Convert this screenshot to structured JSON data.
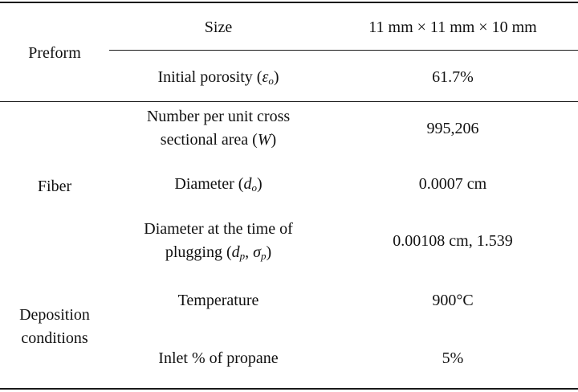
{
  "table": {
    "groups": {
      "preform": "Preform",
      "fiber": "Fiber",
      "deposition_line1": "Deposition",
      "deposition_line2": "conditions"
    },
    "rows": {
      "size": {
        "param": "Size",
        "value": "11 mm × 11 mm × 10 mm"
      },
      "porosity": {
        "param_text": "Initial porosity (",
        "param_sym": "ε",
        "param_sub": "o",
        "param_close": ")",
        "value": "61.7%"
      },
      "number": {
        "param_line1": "Number per unit cross",
        "param_line2_text": "sectional area (",
        "param_line2_sym": "W",
        "param_line2_close": ")",
        "value": "995,206"
      },
      "diameter": {
        "param_text": "Diameter (",
        "param_sym": "d",
        "param_sub": "o",
        "param_close": ")",
        "value": "0.0007 cm"
      },
      "plugging": {
        "param_line1": "Diameter at the time of",
        "param_line2_text": "plugging (",
        "param_line2_sym1": "d",
        "param_line2_sub1": "p",
        "param_line2_sep": ", ",
        "param_line2_sym2": "σ",
        "param_line2_sub2": "p",
        "param_line2_close": ")",
        "value": "0.00108 cm, 1.539"
      },
      "temperature": {
        "param": "Temperature",
        "value": "900°C"
      },
      "propane": {
        "param": "Inlet % of propane",
        "value": "5%"
      }
    }
  }
}
